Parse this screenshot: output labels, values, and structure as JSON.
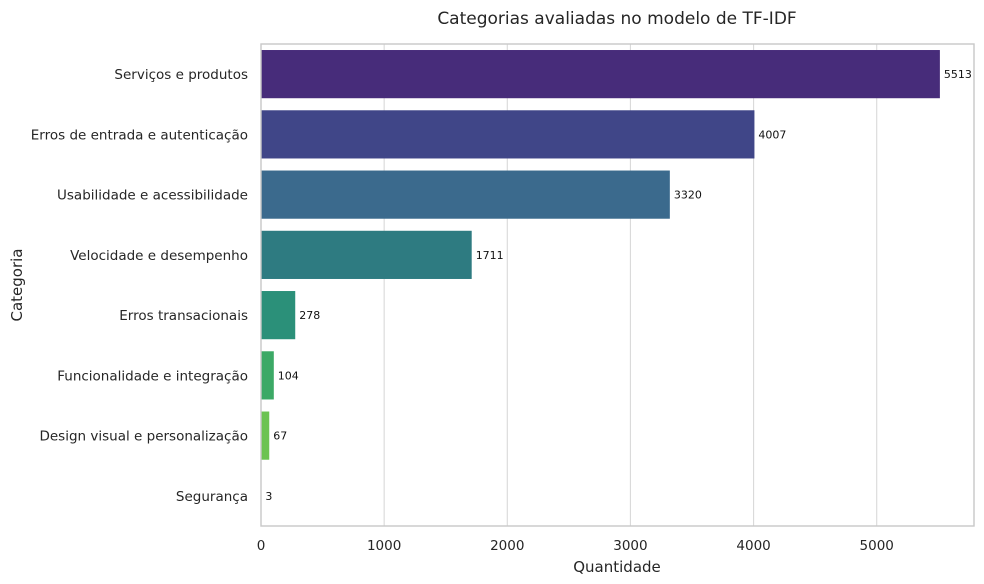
{
  "chart_data": {
    "type": "bar",
    "orientation": "horizontal",
    "title": "Categorias avaliadas no modelo de TF-IDF",
    "xlabel": "Quantidade",
    "ylabel": "Categoria",
    "categories": [
      "Serviços e produtos",
      "Erros de entrada e autenticação",
      "Usabilidade e acessibilidade",
      "Velocidade e desempenho",
      "Erros transacionais",
      "Funcionalidade e integração",
      "Design visual e personalização",
      "Segurança"
    ],
    "values": [
      5513,
      4007,
      3320,
      1711,
      278,
      104,
      67,
      3
    ],
    "data_labels": [
      "5513",
      "4007",
      "3320",
      "1711",
      "278",
      "104",
      "67",
      "3"
    ],
    "colors": [
      "#472c7a",
      "#404688",
      "#3b6a8d",
      "#2e7b81",
      "#2b9079",
      "#3ca966",
      "#6cc352",
      "#b6d832"
    ],
    "xlim": [
      0,
      5790
    ],
    "xticks": [
      0,
      1000,
      2000,
      3000,
      4000,
      5000
    ],
    "xtick_labels": [
      "0",
      "1000",
      "2000",
      "3000",
      "4000",
      "5000"
    ],
    "grid": "vertical"
  }
}
